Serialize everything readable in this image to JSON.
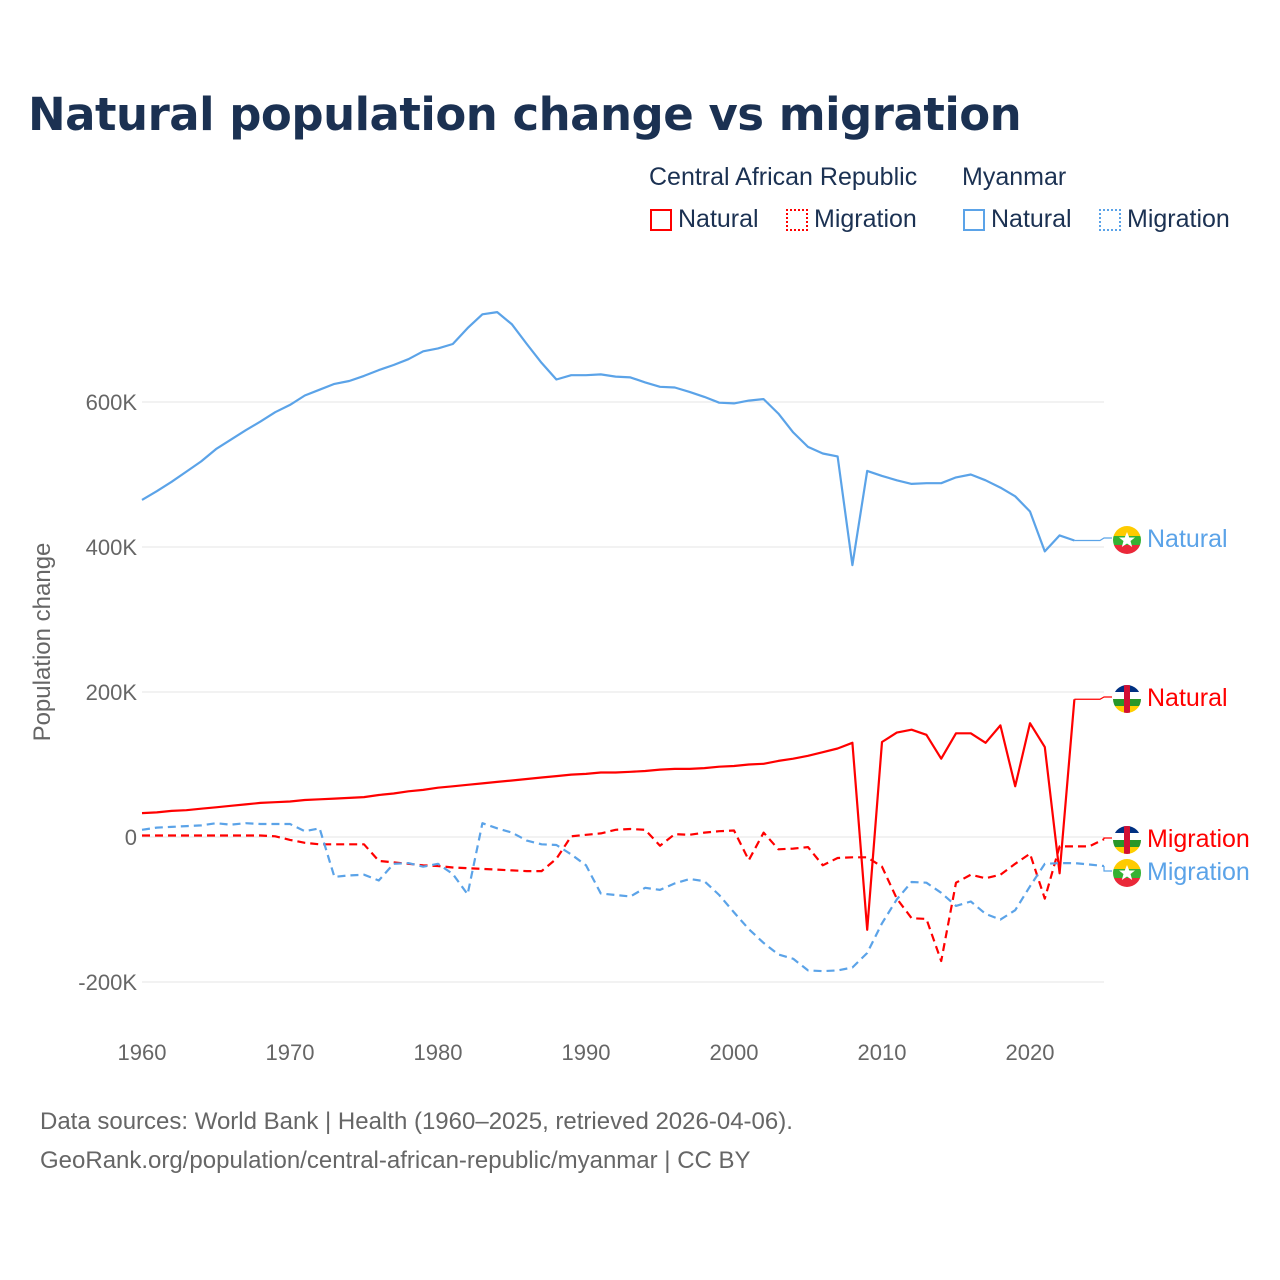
{
  "title": "Natural population change vs migration",
  "legend": {
    "groups": [
      {
        "name": "Central African Republic",
        "items": [
          "Natural",
          "Migration"
        ],
        "color": "#ff0000"
      },
      {
        "name": "Myanmar",
        "items": [
          "Natural",
          "Migration"
        ],
        "color": "#5ba3e8"
      }
    ]
  },
  "footer": {
    "line1": "Data sources: World Bank | Health (1960–2025, retrieved 2026-04-06).",
    "line2": "GeoRank.org/population/central-african-republic/myanmar | CC BY"
  },
  "chart_data": {
    "type": "line",
    "title": "Natural population change vs migration",
    "xlabel": "",
    "ylabel": "Population change",
    "xlim": [
      1960,
      2025
    ],
    "ylim": [
      -200000,
      750000
    ],
    "x_ticks": [
      "1960",
      "1970",
      "1980",
      "1990",
      "2000",
      "2010",
      "2020"
    ],
    "y_ticks": [
      {
        "value": -200000,
        "label": "-200K"
      },
      {
        "value": 0,
        "label": "0"
      },
      {
        "value": 200000,
        "label": "200K"
      },
      {
        "value": 400000,
        "label": "400K"
      },
      {
        "value": 600000,
        "label": "600K"
      }
    ],
    "grid": true,
    "start_year": 1960,
    "unit": "thousands",
    "series": [
      {
        "name": "Myanmar Natural",
        "label": "Natural",
        "color": "#5ba3e8",
        "dash": "solid",
        "flag": "myanmar",
        "values": [
          465,
          477,
          490,
          504,
          518,
          535,
          548,
          561,
          573,
          586,
          596,
          609,
          617,
          625,
          629,
          636,
          644,
          651,
          659,
          670,
          674,
          680,
          702,
          721,
          724,
          707,
          680,
          654,
          631,
          637,
          637,
          638,
          635,
          634,
          627,
          621,
          620,
          614,
          607,
          599,
          598,
          602,
          604,
          584,
          558,
          538,
          529,
          525,
          375,
          505,
          498,
          492,
          487,
          488,
          488,
          496,
          500,
          492,
          482,
          470,
          449,
          394,
          416,
          409
        ]
      },
      {
        "name": "Central African Republic Natural",
        "label": "Natural",
        "color": "#ff0000",
        "dash": "solid",
        "flag": "car",
        "values": [
          33,
          34,
          36,
          37,
          39,
          41,
          43,
          45,
          47,
          48,
          49,
          51,
          52,
          53,
          54,
          55,
          58,
          60,
          63,
          65,
          68,
          70,
          72,
          74,
          76,
          78,
          80,
          82,
          84,
          86,
          87,
          89,
          89,
          90,
          91,
          93,
          94,
          94,
          95,
          97,
          98,
          100,
          101,
          105,
          108,
          112,
          117,
          122,
          130,
          -128,
          131,
          144,
          148,
          141,
          108,
          143,
          143,
          130,
          154,
          70,
          157,
          124,
          -50,
          190
        ]
      },
      {
        "name": "Central African Republic Migration",
        "label": "Migration",
        "color": "#ff0000",
        "dash": "dashed",
        "flag": "car",
        "values": [
          2,
          2,
          2,
          2,
          2,
          2,
          2,
          2,
          2,
          1,
          -4,
          -8,
          -10,
          -10,
          -10,
          -10,
          -33,
          -35,
          -37,
          -39,
          -40,
          -42,
          -43,
          -44,
          -45,
          -46,
          -47,
          -47,
          -30,
          1,
          3,
          5,
          10,
          11,
          10,
          -12,
          4,
          3,
          6,
          8,
          9,
          -32,
          6,
          -17,
          -16,
          -14,
          -39,
          -29,
          -28,
          -28,
          -41,
          -85,
          -112,
          -113,
          -171,
          -63,
          -52,
          -57,
          -52,
          -37,
          -23,
          -85,
          -13,
          -13,
          -13,
          -3
        ]
      },
      {
        "name": "Myanmar Migration",
        "label": "Migration",
        "color": "#5ba3e8",
        "dash": "dashed",
        "flag": "myanmar",
        "values": [
          10,
          13,
          14,
          15,
          16,
          19,
          17,
          19,
          18,
          18,
          18,
          8,
          12,
          -55,
          -53,
          -52,
          -60,
          -37,
          -36,
          -41,
          -37,
          -51,
          -79,
          19,
          12,
          6,
          -5,
          -10,
          -11,
          -24,
          -39,
          -78,
          -80,
          -82,
          -70,
          -73,
          -64,
          -58,
          -61,
          -80,
          -104,
          -127,
          -146,
          -162,
          -168,
          -184,
          -185,
          -184,
          -180,
          -160,
          -119,
          -86,
          -62,
          -63,
          -77,
          -95,
          -89,
          -106,
          -114,
          -101,
          -68,
          -37,
          -36,
          -36,
          -38,
          -40
        ]
      }
    ]
  }
}
